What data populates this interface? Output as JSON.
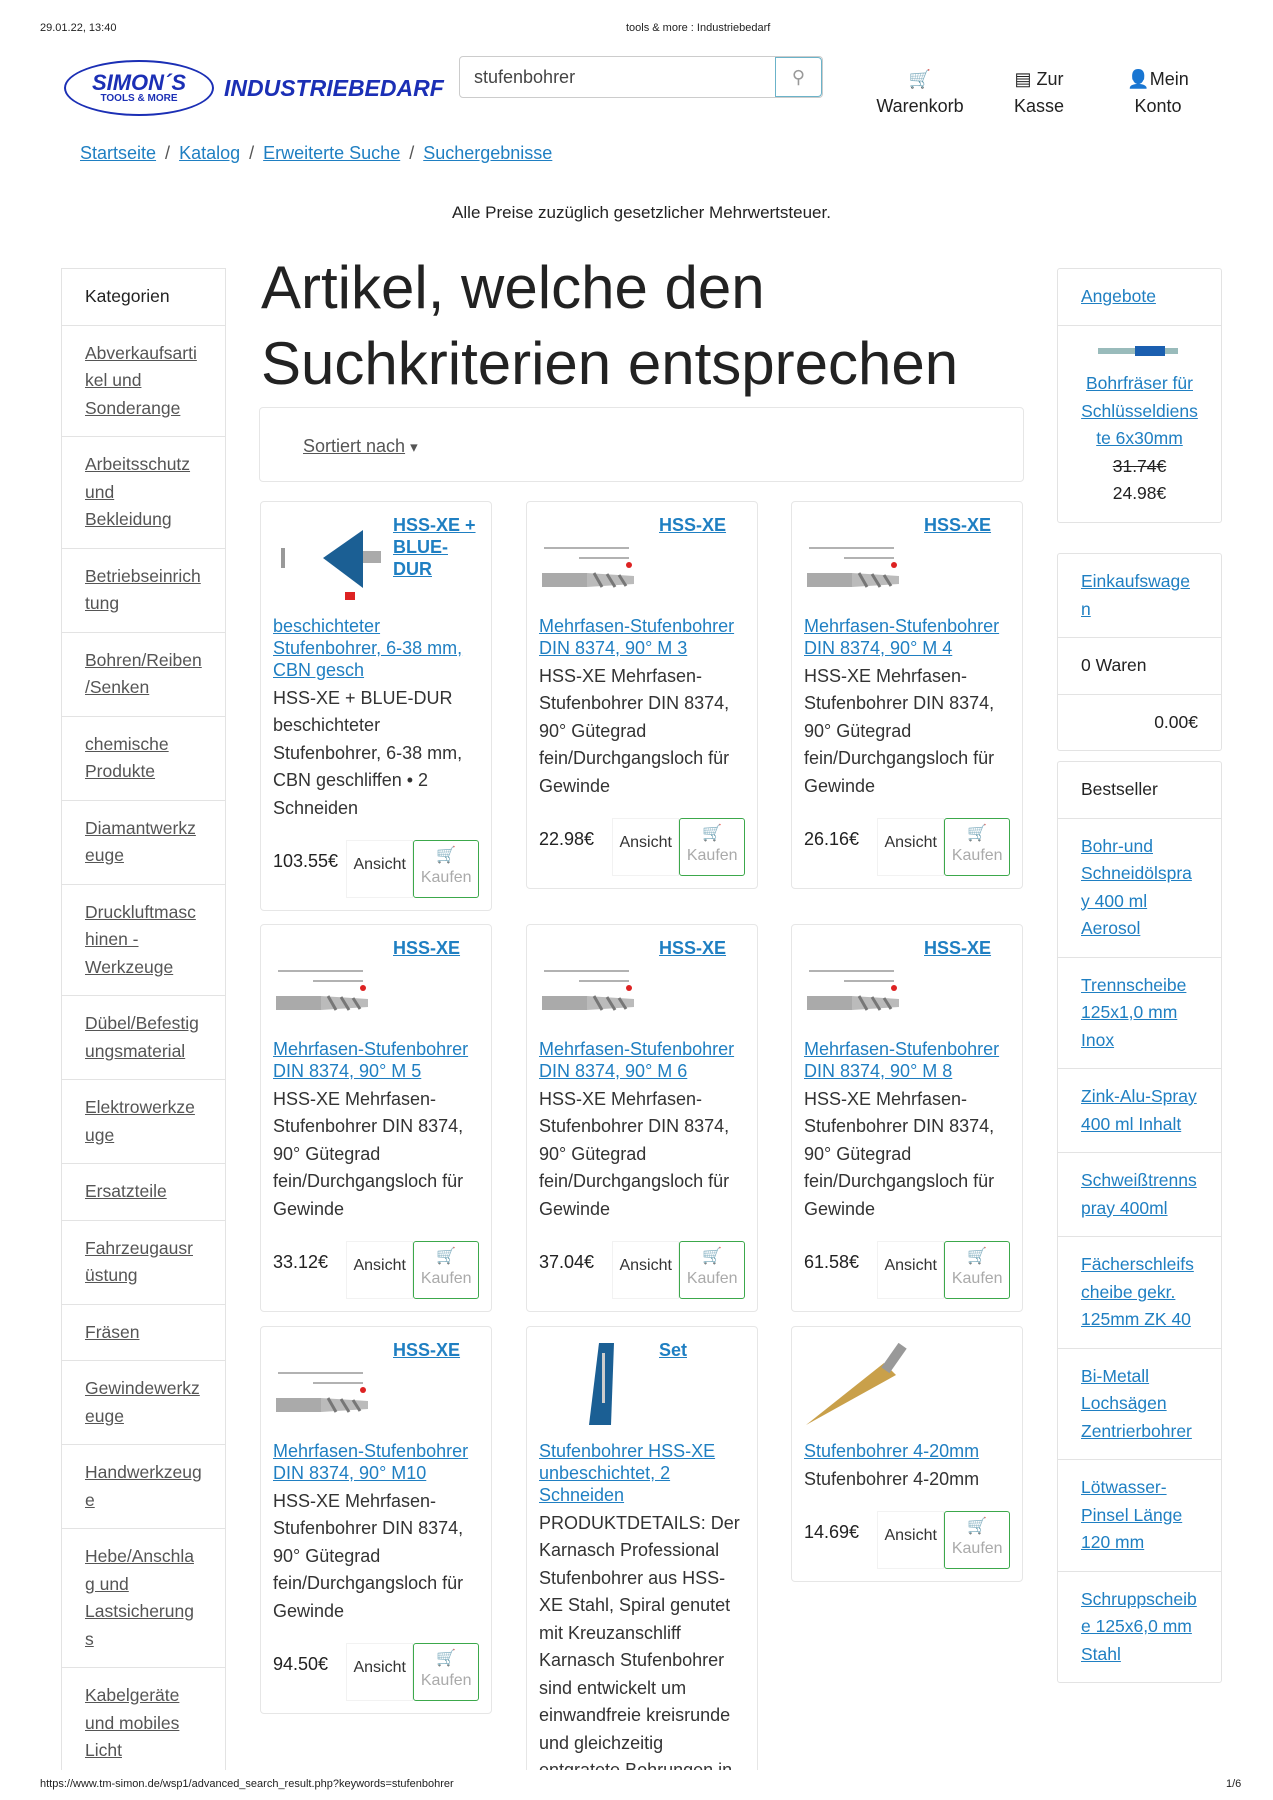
{
  "print_header": {
    "datetime": "29.01.22, 13:40",
    "title": "tools & more : Industriebedarf"
  },
  "logo": {
    "name": "SIMON´S",
    "tagline": "TOOLS & MORE",
    "brand": "INDUSTRIEBEDARF"
  },
  "search": {
    "value": "stufenbohrer",
    "icon": "search-icon"
  },
  "nav": [
    {
      "label": "Warenkorb",
      "icon": "cart-icon"
    },
    {
      "label1": "Zur",
      "label2": "Kasse",
      "icon": "credit-card-icon"
    },
    {
      "label1": "Mein",
      "label2": "Konto",
      "icon": "user-icon"
    }
  ],
  "breadcrumb": [
    "Startseite",
    "Katalog",
    "Erweiterte Suche",
    "Suchergebnisse"
  ],
  "notice": "Alle Preise zuzüglich gesetzlicher Mehrwertsteuer.",
  "categories": {
    "title": "Kategorien",
    "items": [
      "Abverkaufsartikel und Sonderange",
      "Arbeitsschutz und Bekleidung",
      "Betriebseinrichtung",
      "Bohren/Reiben/Senken",
      "chemische Produkte",
      "Diamantwerkzeuge",
      "Druckluftmaschinen - Werkzeuge",
      "Dübel/Befestigungsmaterial",
      "Elektrowerkzeuge",
      "Ersatzteile",
      "Fahrzeugausrüstung",
      "Fräsen",
      "Gewindewerkzeuge",
      "Handwerkzeuge",
      "Hebe/Anschlag und Lastsicherungs",
      "Kabelgeräte und mobiles Licht"
    ]
  },
  "main": {
    "title": "Artikel, welche den Suchkriterien entsprechen",
    "sort_label": "Sortiert nach"
  },
  "buttons": {
    "view": "Ansicht",
    "buy": "Kaufen"
  },
  "products": [
    {
      "brand": "HSS-XE + BLUE-DUR",
      "title": "beschichteter Stufenbohrer, 6-38 mm, CBN gesch",
      "desc": "HSS-XE + BLUE-DUR beschichteter Stufenbohrer, 6-38 mm, CBN geschliffen • 2 Schneiden",
      "price": "103.55€",
      "img": "blue-cone"
    },
    {
      "brand": "HSS-XE",
      "title": "Mehrfasen-Stufenbohrer DIN 8374, 90° M 3",
      "desc": "HSS-XE Mehrfasen-Stufenbohrer DIN 8374, 90° Gütegrad fein/Durchgangsloch für Gewinde",
      "price": "22.98€",
      "img": "drill"
    },
    {
      "brand": "HSS-XE",
      "title": "Mehrfasen-Stufenbohrer DIN 8374, 90° M 4",
      "desc": "HSS-XE Mehrfasen-Stufenbohrer DIN 8374, 90° Gütegrad fein/Durchgangsloch für Gewinde",
      "price": "26.16€",
      "img": "drill"
    },
    {
      "brand": "HSS-XE",
      "title": "Mehrfasen-Stufenbohrer DIN 8374, 90° M 5",
      "desc": "HSS-XE Mehrfasen-Stufenbohrer DIN 8374, 90° Gütegrad fein/Durchgangsloch für Gewinde",
      "price": "33.12€",
      "img": "drill"
    },
    {
      "brand": "HSS-XE",
      "title": "Mehrfasen-Stufenbohrer DIN 8374, 90° M 6",
      "desc": "HSS-XE Mehrfasen-Stufenbohrer DIN 8374, 90° Gütegrad fein/Durchgangsloch für Gewinde",
      "price": "37.04€",
      "img": "drill"
    },
    {
      "brand": "HSS-XE",
      "title": "Mehrfasen-Stufenbohrer DIN 8374, 90° M 8",
      "desc": "HSS-XE Mehrfasen-Stufenbohrer DIN 8374, 90° Gütegrad fein/Durchgangsloch für Gewinde",
      "price": "61.58€",
      "img": "drill"
    },
    {
      "brand": "HSS-XE",
      "title": "Mehrfasen-Stufenbohrer DIN 8374, 90° M10",
      "desc": "HSS-XE Mehrfasen-Stufenbohrer DIN 8374, 90° Gütegrad fein/Durchgangsloch für Gewinde",
      "price": "94.50€",
      "img": "drill"
    },
    {
      "brand": "Set",
      "title": "Stufenbohrer HSS-XE unbeschichtet, 2 Schneiden",
      "desc": "PRODUKTDETAILS: Der Karnasch Professional Stufenbohrer aus HSS-XE Stahl, Spiral genutet mit Kreuzanschliff Karnasch Stufenbohrer sind entwickelt um einwandfreie kreisrunde und gleichzeitig entgratete Bohrungen in",
      "price": "",
      "img": "blue-case"
    },
    {
      "brand": "",
      "title": "Stufenbohrer 4-20mm",
      "desc": "Stufenbohrer 4-20mm",
      "price": "14.69€",
      "img": "gold-cone"
    }
  ],
  "offers": {
    "title": "Angebote",
    "product": "Bohrfräser für Schlüsseldienste 6x30mm",
    "old_price": "31.74€",
    "price": "24.98€"
  },
  "cart": {
    "title": "Einkaufswagen",
    "items": "0 Waren",
    "total": "0.00€"
  },
  "bestseller": {
    "title": "Bestseller",
    "items": [
      "Bohr-und Schneidölspray 400 ml Aerosol",
      "Trennscheibe 125x1,0 mm Inox",
      "Zink-Alu-Spray 400 ml Inhalt",
      "Schweißtrennspray 400ml",
      "Fächerschleifscheibe gekr. 125mm ZK 40",
      "Bi-Metall Lochsägen Zentrierbohrer",
      "Lötwasser-Pinsel Länge 120 mm",
      "Schruppscheibe 125x6,0 mm Stahl"
    ]
  },
  "print_footer": {
    "url": "https://www.tm-simon.de/wsp1/advanced_search_result.php?keywords=stufenbohrer",
    "page": "1/6"
  },
  "colors": {
    "link": "#1f7fc2",
    "buy_border": "#3ca84b",
    "logo": "#1b2fb5"
  }
}
